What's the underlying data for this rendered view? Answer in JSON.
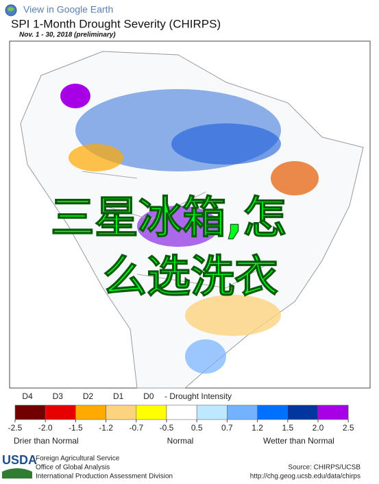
{
  "header": {
    "link": "View in Google Earth",
    "title": "SPI 1-Month Drought Severity (CHIRPS)",
    "subtitle": "Nov. 1 - 30, 2018 (preliminary)"
  },
  "overlay": {
    "line1": "三星冰箱,怎",
    "line2": "么选洗衣"
  },
  "legend": {
    "drought_classes": [
      "D4",
      "D3",
      "D2",
      "D1",
      "D0"
    ],
    "drought_title": "- Drought Intensity",
    "ticks": [
      -2.5,
      {
        "value": -2.0,
        "label": "-2.0"
      },
      -1.5,
      -1.2,
      -0.7,
      -0.5,
      0.5,
      0.7,
      1.2,
      1.5,
      {
        "value": 2.0,
        "label": "2.0"
      },
      2.5
    ],
    "colors": [
      "#730000",
      "#e60000",
      "#ffaa00",
      "#fcd37f",
      "#ffff00",
      "#ffffff",
      "#bee8ff",
      "#73b2ff",
      "#0070ff",
      "#00369e",
      "#a800e6"
    ],
    "left": "Drier than Normal",
    "center": "Normal",
    "right": "Wetter than Normal"
  },
  "footer": {
    "logo": "USDA",
    "org1": "Foreign Agricultural Service",
    "org2": "Office of Global Analysis",
    "org3": "International Production Assessment Division",
    "source": "Source: CHIRPS/UCSB",
    "url": "http://chg.geog.ucsb.edu/data/chirps"
  }
}
